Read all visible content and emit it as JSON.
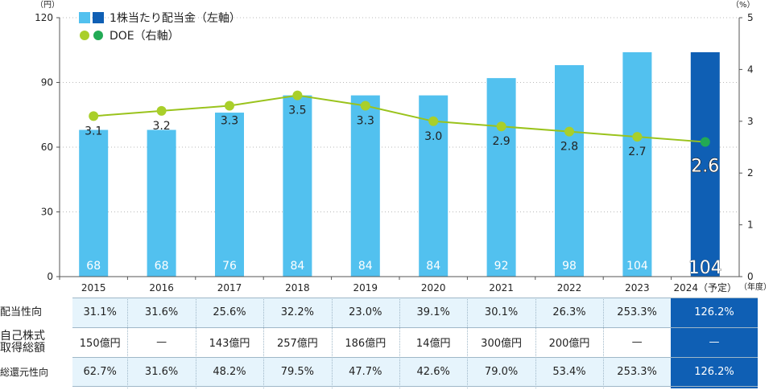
{
  "chart_data": {
    "type": "bar+line",
    "categories": [
      "2015",
      "2016",
      "2017",
      "2018",
      "2019",
      "2020",
      "2021",
      "2022",
      "2023",
      "2024（予定）"
    ],
    "series": [
      {
        "name": "1株当たり配当金（左軸）",
        "type": "bar",
        "axis": "left",
        "values": [
          68,
          68,
          76,
          84,
          84,
          84,
          92,
          98,
          104,
          104
        ]
      },
      {
        "name": "DOE（右軸）",
        "type": "line",
        "axis": "right",
        "values": [
          3.1,
          3.2,
          3.3,
          3.5,
          3.3,
          3.0,
          2.9,
          2.8,
          2.7,
          2.6
        ]
      }
    ],
    "y_left": {
      "unit": "（円）",
      "ticks": [
        0,
        30,
        60,
        90,
        120
      ],
      "ylim": [
        0,
        120
      ]
    },
    "y_right": {
      "unit": "（%）",
      "ticks": [
        0,
        1,
        2,
        3,
        4,
        5
      ],
      "ylim": [
        0,
        5
      ]
    },
    "x_unit": "（年度）",
    "highlight_index": 9,
    "legend_position": "top-left",
    "colors": {
      "bar": "#52c1ef",
      "bar_highlight": "#0f5fb4",
      "line": "#9ac31c",
      "dot": "#a9cf2a",
      "dot_highlight": "#22aa55"
    }
  },
  "table": {
    "rows": [
      {
        "label": "配当性向",
        "values": [
          "31.1%",
          "31.6%",
          "25.6%",
          "32.2%",
          "23.0%",
          "39.1%",
          "30.1%",
          "26.3%",
          "253.3%",
          "126.2%"
        ]
      },
      {
        "label": "自己株式取得総額",
        "values": [
          "150億円",
          "—",
          "143億円",
          "257億円",
          "186億円",
          "14億円",
          "300億円",
          "200億円",
          "—",
          "—"
        ]
      },
      {
        "label": "総還元性向",
        "values": [
          "62.7%",
          "31.6%",
          "48.2%",
          "79.5%",
          "47.7%",
          "42.6%",
          "79.0%",
          "53.4%",
          "253.3%",
          "126.2%"
        ]
      }
    ]
  }
}
